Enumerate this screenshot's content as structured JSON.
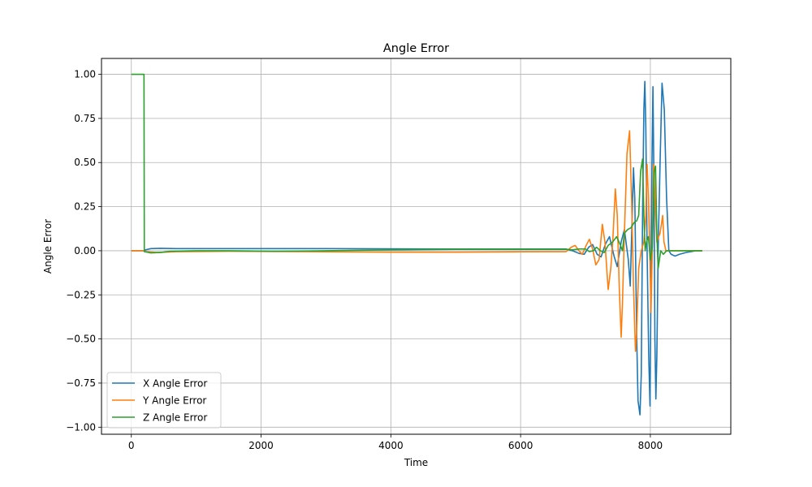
{
  "chart_data": {
    "type": "line",
    "title": "Angle Error",
    "xlabel": "Time",
    "ylabel": "Angle Error",
    "xlim": [
      -460,
      9240
    ],
    "ylim": [
      -1.04,
      1.09
    ],
    "xticks": [
      0,
      2000,
      4000,
      6000,
      8000
    ],
    "xtick_labels": [
      "0",
      "2000",
      "4000",
      "6000",
      "8000"
    ],
    "yticks": [
      -1.0,
      -0.75,
      -0.5,
      -0.25,
      0.0,
      0.25,
      0.5,
      0.75,
      1.0
    ],
    "ytick_labels": [
      "−1.00",
      "−0.75",
      "−0.50",
      "−0.25",
      "0.00",
      "0.25",
      "0.50",
      "0.75",
      "1.00"
    ],
    "grid": true,
    "legend_position": "lower-left",
    "series": [
      {
        "name": "X Angle Error",
        "color": "#1f77b4",
        "points": [
          [
            0,
            0
          ],
          [
            190,
            0
          ],
          [
            215,
            0.005
          ],
          [
            300,
            0.012
          ],
          [
            450,
            0.014
          ],
          [
            700,
            0.012
          ],
          [
            1200,
            0.012
          ],
          [
            3000,
            0.012
          ],
          [
            5000,
            0.01
          ],
          [
            6000,
            0.01
          ],
          [
            6700,
            0.01
          ],
          [
            6800,
            0
          ],
          [
            6900,
            -0.015
          ],
          [
            6980,
            -0.02
          ],
          [
            7050,
            0.02
          ],
          [
            7110,
            0.035
          ],
          [
            7180,
            -0.02
          ],
          [
            7240,
            -0.035
          ],
          [
            7310,
            0.04
          ],
          [
            7370,
            0.08
          ],
          [
            7440,
            -0.03
          ],
          [
            7490,
            -0.09
          ],
          [
            7550,
            0.05
          ],
          [
            7600,
            0.12
          ],
          [
            7660,
            -0.05
          ],
          [
            7690,
            -0.2
          ],
          [
            7720,
            0.2
          ],
          [
            7740,
            0.47
          ],
          [
            7760,
            0.3
          ],
          [
            7790,
            -0.5
          ],
          [
            7810,
            -0.85
          ],
          [
            7840,
            -0.93
          ],
          [
            7860,
            -0.7
          ],
          [
            7880,
            0.2
          ],
          [
            7900,
            0.8
          ],
          [
            7915,
            0.96
          ],
          [
            7930,
            0.7
          ],
          [
            7950,
            0.0
          ],
          [
            7975,
            -0.6
          ],
          [
            7995,
            -0.88
          ],
          [
            8010,
            -0.2
          ],
          [
            8025,
            0.5
          ],
          [
            8040,
            0.93
          ],
          [
            8055,
            0.4
          ],
          [
            8070,
            -0.5
          ],
          [
            8085,
            -0.84
          ],
          [
            8100,
            -0.6
          ],
          [
            8120,
            0.0
          ],
          [
            8150,
            0.5
          ],
          [
            8180,
            0.95
          ],
          [
            8215,
            0.8
          ],
          [
            8250,
            0.3
          ],
          [
            8285,
            0.0
          ],
          [
            8320,
            -0.02
          ],
          [
            8380,
            -0.03
          ],
          [
            8450,
            -0.02
          ],
          [
            8550,
            -0.01
          ],
          [
            8700,
            0
          ],
          [
            8800,
            0
          ]
        ]
      },
      {
        "name": "Y Angle Error",
        "color": "#ff7f0e",
        "points": [
          [
            0,
            0
          ],
          [
            190,
            0
          ],
          [
            210,
            -0.005
          ],
          [
            400,
            -0.01
          ],
          [
            700,
            -0.005
          ],
          [
            1500,
            -0.003
          ],
          [
            3000,
            -0.006
          ],
          [
            4000,
            -0.008
          ],
          [
            5000,
            -0.008
          ],
          [
            6000,
            -0.006
          ],
          [
            6700,
            -0.005
          ],
          [
            6780,
            0.02
          ],
          [
            6840,
            0.03
          ],
          [
            6900,
            0.0
          ],
          [
            6950,
            -0.02
          ],
          [
            7010,
            0.03
          ],
          [
            7060,
            0.065
          ],
          [
            7110,
            0.01
          ],
          [
            7160,
            -0.08
          ],
          [
            7210,
            -0.05
          ],
          [
            7260,
            0.15
          ],
          [
            7300,
            0.05
          ],
          [
            7350,
            -0.22
          ],
          [
            7390,
            -0.1
          ],
          [
            7420,
            0.05
          ],
          [
            7460,
            0.35
          ],
          [
            7490,
            0.2
          ],
          [
            7520,
            -0.2
          ],
          [
            7550,
            -0.49
          ],
          [
            7570,
            -0.3
          ],
          [
            7600,
            0.1
          ],
          [
            7640,
            0.55
          ],
          [
            7680,
            0.68
          ],
          [
            7710,
            0.3
          ],
          [
            7740,
            -0.2
          ],
          [
            7770,
            -0.57
          ],
          [
            7790,
            -0.45
          ],
          [
            7820,
            -0.1
          ],
          [
            7860,
            0.0
          ],
          [
            7900,
            0.05
          ],
          [
            7930,
            0.2
          ],
          [
            7950,
            0.49
          ],
          [
            7970,
            0.3
          ],
          [
            7990,
            0.0
          ],
          [
            8010,
            -0.35
          ],
          [
            8030,
            0.0
          ],
          [
            8050,
            0.49
          ],
          [
            8070,
            0.3
          ],
          [
            8100,
            0.05
          ],
          [
            8150,
            0.1
          ],
          [
            8190,
            0.2
          ],
          [
            8210,
            0.05
          ],
          [
            8240,
            0.0
          ],
          [
            8400,
            0.0
          ],
          [
            8600,
            0.0
          ],
          [
            8800,
            0.0
          ]
        ]
      },
      {
        "name": "Z Angle Error",
        "color": "#2ca02c",
        "points": [
          [
            0,
            1.0
          ],
          [
            195,
            1.0
          ],
          [
            200,
            -0.005
          ],
          [
            300,
            -0.012
          ],
          [
            450,
            -0.01
          ],
          [
            600,
            -0.003
          ],
          [
            1000,
            0.0
          ],
          [
            1500,
            0.0
          ],
          [
            2200,
            -0.003
          ],
          [
            3000,
            0.0
          ],
          [
            4000,
            0.005
          ],
          [
            5000,
            0.008
          ],
          [
            6000,
            0.008
          ],
          [
            6700,
            0.008
          ],
          [
            6800,
            0.005
          ],
          [
            6900,
            0.01
          ],
          [
            7000,
            0.01
          ],
          [
            7060,
            -0.005
          ],
          [
            7120,
            0.0
          ],
          [
            7170,
            0.02
          ],
          [
            7230,
            0.0
          ],
          [
            7290,
            -0.01
          ],
          [
            7350,
            0.03
          ],
          [
            7420,
            0.05
          ],
          [
            7480,
            0.08
          ],
          [
            7540,
            0.03
          ],
          [
            7570,
            0.0
          ],
          [
            7600,
            0.1
          ],
          [
            7650,
            0.12
          ],
          [
            7700,
            0.13
          ],
          [
            7750,
            0.16
          ],
          [
            7790,
            0.17
          ],
          [
            7820,
            0.2
          ],
          [
            7850,
            0.45
          ],
          [
            7880,
            0.52
          ],
          [
            7900,
            0.2
          ],
          [
            7920,
            0.0
          ],
          [
            7940,
            0.05
          ],
          [
            7970,
            0.08
          ],
          [
            8000,
            -0.05
          ],
          [
            8030,
            0.02
          ],
          [
            8060,
            0.45
          ],
          [
            8080,
            0.48
          ],
          [
            8100,
            0.1
          ],
          [
            8120,
            -0.1
          ],
          [
            8140,
            -0.05
          ],
          [
            8160,
            0.0
          ],
          [
            8200,
            -0.02
          ],
          [
            8250,
            0.0
          ],
          [
            8300,
            0.0
          ],
          [
            8500,
            0.0
          ],
          [
            8800,
            0.0
          ]
        ]
      }
    ]
  }
}
